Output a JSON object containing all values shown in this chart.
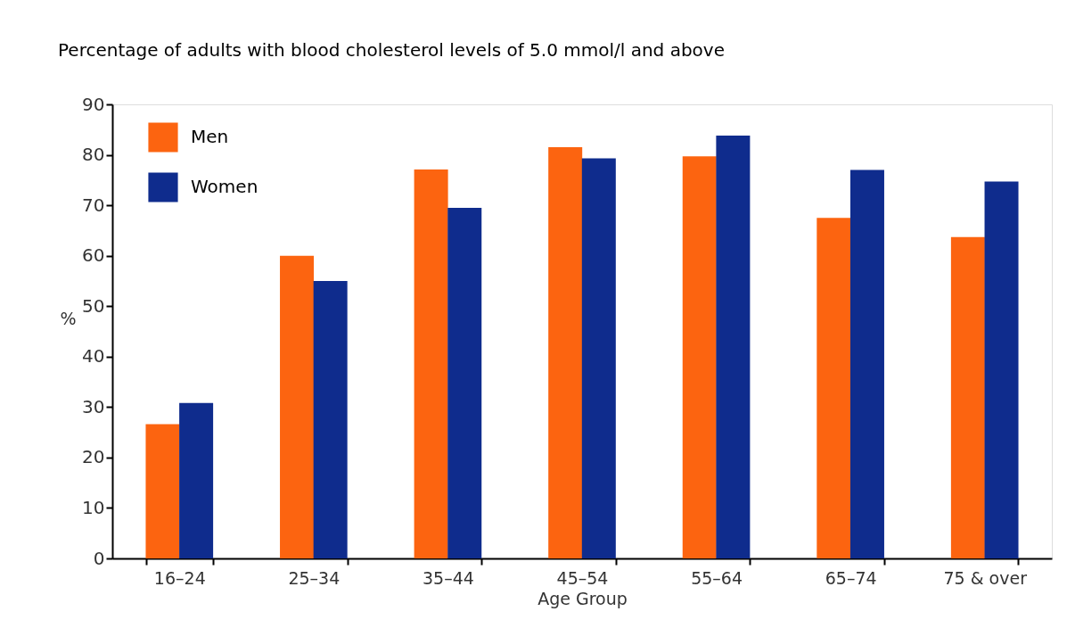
{
  "chart_data": {
    "type": "bar",
    "title": "Percentage of adults with blood cholesterol levels of 5.0 mmol/l and above",
    "xlabel": "Age Group",
    "ylabel": "%",
    "categories": [
      "16–24",
      "25–34",
      "35–44",
      "45–54",
      "55–64",
      "65–74",
      "75 & over"
    ],
    "series": [
      {
        "name": "Men",
        "color": "#fc6410",
        "values": [
          26.6,
          60.0,
          77.1,
          81.5,
          79.7,
          67.5,
          63.7
        ]
      },
      {
        "name": "Women",
        "color": "#0f2c8d",
        "values": [
          30.8,
          55.0,
          69.5,
          79.3,
          83.8,
          77.0,
          74.7
        ]
      }
    ],
    "ylim": [
      0,
      90
    ],
    "yticks": [
      0,
      10,
      20,
      30,
      40,
      50,
      60,
      70,
      80,
      90
    ],
    "grid": false,
    "legend": "top left"
  }
}
